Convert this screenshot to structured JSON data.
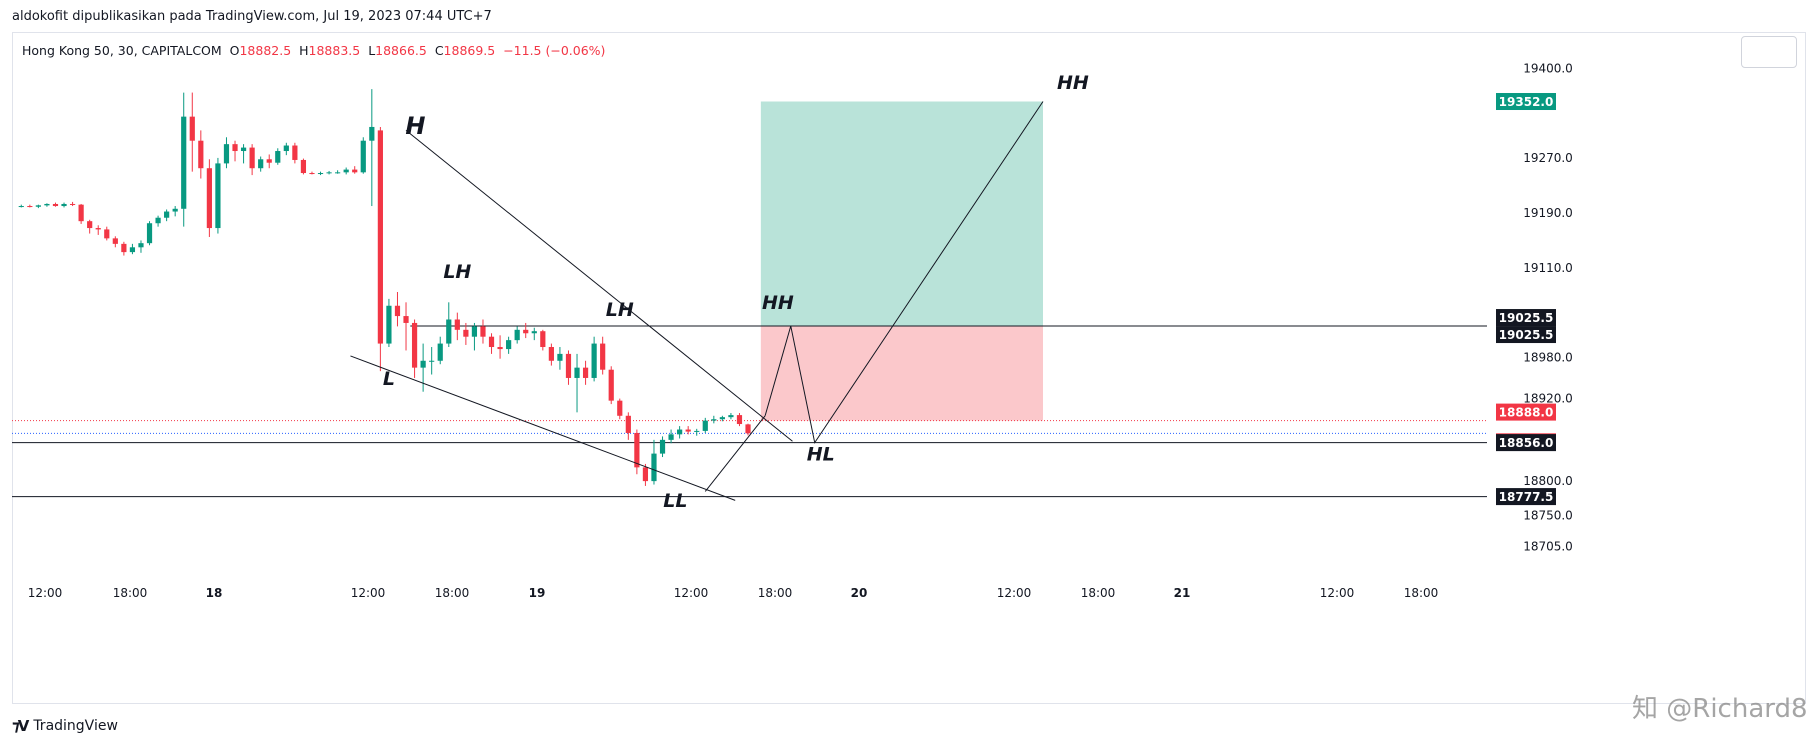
{
  "header": {
    "publisher_line": "aldokofit dipublikasikan pada TradingView.com, Jul 19, 2023 07:44 UTC+7"
  },
  "legend": {
    "symbol": "Hong Kong 50, 30, CAPITALCOM",
    "o_label": "O",
    "o_value": "18882.5",
    "h_label": "H",
    "h_value": "18883.5",
    "l_label": "L",
    "l_value": "18866.5",
    "c_label": "C",
    "c_value": "18869.5",
    "change": "−11.5 (−0.06%)"
  },
  "footer": {
    "logo_text": "TradingView",
    "watermark": "知 @Richard8"
  },
  "colors": {
    "up": "#089981",
    "down": "#f23645",
    "profit_zone": "#b9e3d9",
    "loss_zone": "#fbc8cb",
    "line": "#131722"
  },
  "chart_data": {
    "type": "candlestick",
    "symbol": "Hong Kong 50, 30, CAPITALCOM",
    "y_axis": {
      "side": "right",
      "ticks": [
        "19400.0",
        "19270.0",
        "19190.0",
        "19110.0",
        "18980.0",
        "18920.0",
        "18800.0",
        "18750.0",
        "18705.0"
      ],
      "range": [
        18660,
        19450
      ]
    },
    "x_axis": {
      "ticks": [
        "12:00",
        "18:00",
        "18",
        "12:00",
        "18:00",
        "19",
        "12:00",
        "18:00",
        "20",
        "12:00",
        "18:00",
        "21",
        "12:00",
        "18:00"
      ],
      "bold_ticks": [
        "18",
        "19",
        "20",
        "21"
      ]
    },
    "price_labels": [
      {
        "value": "19352.0",
        "price": 19352.0,
        "style": "profit"
      },
      {
        "value": "19025.5",
        "price": 19025.5,
        "style": "dark",
        "offset": -1
      },
      {
        "value": "19025.5",
        "price": 19025.5,
        "style": "dark",
        "offset": 1
      },
      {
        "value": "18888.0",
        "price": 18888.0,
        "style": "red",
        "offset": -1
      },
      {
        "value": "18869.5",
        "price": 18869.5,
        "style": "red",
        "offset": 1
      },
      {
        "value": "18856.0",
        "price": 18856.0,
        "style": "dark"
      },
      {
        "value": "18777.5",
        "price": 18777.5,
        "style": "dark"
      }
    ],
    "horizontal_lines": [
      {
        "price": 19025.5,
        "from_bar": 46,
        "style": "solid"
      },
      {
        "price": 18856.0,
        "from_bar": 0,
        "style": "solid"
      },
      {
        "price": 18777.5,
        "from_bar": 0,
        "style": "solid"
      },
      {
        "price": 18888.0,
        "from_bar": 0,
        "style": "dotted-red"
      },
      {
        "price": 18869.5,
        "from_bar": 0,
        "style": "dotted-blue"
      }
    ],
    "candles": [
      [
        19200,
        19202,
        19198,
        19200
      ],
      [
        19200,
        19202,
        19198,
        19199
      ],
      [
        19199,
        19202,
        19197,
        19201
      ],
      [
        19201,
        19204,
        19199,
        19203
      ],
      [
        19203,
        19205,
        19199,
        19200
      ],
      [
        19200,
        19205,
        19198,
        19203
      ],
      [
        19203,
        19206,
        19200,
        19202
      ],
      [
        19202,
        19203,
        19174,
        19178
      ],
      [
        19178,
        19180,
        19160,
        19168
      ],
      [
        19168,
        19172,
        19158,
        19166
      ],
      [
        19166,
        19170,
        19150,
        19153
      ],
      [
        19153,
        19156,
        19140,
        19145
      ],
      [
        19145,
        19148,
        19128,
        19133
      ],
      [
        19133,
        19145,
        19130,
        19140
      ],
      [
        19140,
        19150,
        19132,
        19146
      ],
      [
        19146,
        19178,
        19143,
        19175
      ],
      [
        19175,
        19186,
        19170,
        19183
      ],
      [
        19183,
        19195,
        19178,
        19192
      ],
      [
        19192,
        19200,
        19185,
        19196
      ],
      [
        19196,
        19365,
        19170,
        19330
      ],
      [
        19330,
        19365,
        19250,
        19295
      ],
      [
        19295,
        19310,
        19240,
        19255
      ],
      [
        19255,
        19268,
        19155,
        19168
      ],
      [
        19168,
        19270,
        19160,
        19262
      ],
      [
        19262,
        19300,
        19255,
        19290
      ],
      [
        19290,
        19295,
        19265,
        19280
      ],
      [
        19280,
        19290,
        19262,
        19285
      ],
      [
        19285,
        19290,
        19245,
        19255
      ],
      [
        19255,
        19272,
        19250,
        19268
      ],
      [
        19268,
        19275,
        19255,
        19263
      ],
      [
        19263,
        19284,
        19260,
        19280
      ],
      [
        19280,
        19292,
        19274,
        19288
      ],
      [
        19288,
        19292,
        19262,
        19267
      ],
      [
        19267,
        19269,
        19246,
        19248
      ],
      [
        19248,
        19250,
        19246,
        19247
      ],
      [
        19247,
        19250,
        19245,
        19248
      ],
      [
        19248,
        19251,
        19246,
        19249
      ],
      [
        19249,
        19252,
        19247,
        19249
      ],
      [
        19249,
        19256,
        19246,
        19253
      ],
      [
        19253,
        19258,
        19247,
        19249
      ],
      [
        19249,
        19300,
        19247,
        19295
      ],
      [
        19295,
        19370,
        19200,
        19315
      ],
      [
        19310,
        19315,
        18960,
        19000
      ],
      [
        19000,
        19065,
        18995,
        19055
      ],
      [
        19055,
        19075,
        19025,
        19040
      ],
      [
        19040,
        19060,
        18990,
        19030
      ],
      [
        19030,
        19035,
        18950,
        18965
      ],
      [
        18965,
        19000,
        18930,
        18975
      ],
      [
        18975,
        18995,
        18955,
        18975
      ],
      [
        18975,
        19010,
        18970,
        19000
      ],
      [
        19000,
        19060,
        18995,
        19035
      ],
      [
        19035,
        19045,
        19005,
        19020
      ],
      [
        19020,
        19030,
        18998,
        19010
      ],
      [
        19010,
        19030,
        18990,
        19025
      ],
      [
        19025,
        19035,
        19000,
        19010
      ],
      [
        19010,
        19015,
        18985,
        18995
      ],
      [
        18995,
        19012,
        18978,
        18992
      ],
      [
        18992,
        19010,
        18985,
        19005
      ],
      [
        19005,
        19025,
        19000,
        19020
      ],
      [
        19020,
        19030,
        19008,
        19015
      ],
      [
        19015,
        19023,
        19005,
        19018
      ],
      [
        19018,
        19020,
        18990,
        18995
      ],
      [
        18995,
        19000,
        18968,
        18975
      ],
      [
        18975,
        18995,
        18962,
        18985
      ],
      [
        18985,
        18990,
        18940,
        18950
      ],
      [
        18950,
        18985,
        18900,
        18965
      ],
      [
        18965,
        18975,
        18940,
        18950
      ],
      [
        18950,
        19010,
        18945,
        19000
      ],
      [
        19000,
        19010,
        18955,
        18962
      ],
      [
        18962,
        18967,
        18912,
        18917
      ],
      [
        18917,
        18920,
        18890,
        18895
      ],
      [
        18895,
        18900,
        18860,
        18870
      ],
      [
        18870,
        18875,
        18810,
        18820
      ],
      [
        18820,
        18825,
        18793,
        18800
      ],
      [
        18800,
        18860,
        18795,
        18840
      ],
      [
        18840,
        18865,
        18835,
        18860
      ],
      [
        18860,
        18875,
        18855,
        18868
      ],
      [
        18868,
        18880,
        18862,
        18875
      ],
      [
        18875,
        18880,
        18868,
        18872
      ],
      [
        18872,
        18876,
        18866,
        18873
      ],
      [
        18873,
        18892,
        18870,
        18888
      ],
      [
        18888,
        18895,
        18884,
        18890
      ],
      [
        18890,
        18895,
        18887,
        18893
      ],
      [
        18893,
        18899,
        18890,
        18896
      ],
      [
        18896,
        18899,
        18880,
        18883
      ],
      [
        18882.5,
        18883.5,
        18866.5,
        18869.5
      ]
    ],
    "position": {
      "type": "long",
      "entry": 19025.5,
      "target": 19352.0,
      "stop": 18888.0,
      "from_bar": 87,
      "to_bar": 120
    },
    "trendlines": [
      {
        "points": [
          [
            45.5,
            19310
          ],
          [
            90.7,
            18858
          ]
        ]
      },
      {
        "points": [
          [
            39,
            18982
          ],
          [
            84,
            18772
          ]
        ]
      },
      {
        "points": [
          [
            80.5,
            18785
          ],
          [
            87.5,
            18895
          ]
        ]
      }
    ],
    "projection_path": [
      [
        87.5,
        18895
      ],
      [
        90.5,
        19025.5
      ],
      [
        93.3,
        18856
      ],
      [
        120,
        19352
      ]
    ],
    "annotations": [
      {
        "text": "H",
        "bar": 46.6,
        "price": 19305,
        "size": 24
      },
      {
        "text": "LH",
        "bar": 51.5,
        "price": 19095,
        "size": 19
      },
      {
        "text": "L",
        "bar": 43.5,
        "price": 18940,
        "size": 19
      },
      {
        "text": "LH",
        "bar": 70.5,
        "price": 19040,
        "size": 19
      },
      {
        "text": "LL",
        "bar": 77,
        "price": 18762,
        "size": 19
      },
      {
        "text": "HH",
        "bar": 89,
        "price": 19050,
        "size": 19
      },
      {
        "text": "HL",
        "bar": 94,
        "price": 18830,
        "size": 19
      },
      {
        "text": "HH",
        "bar": 123.5,
        "price": 19370,
        "size": 19
      }
    ]
  }
}
